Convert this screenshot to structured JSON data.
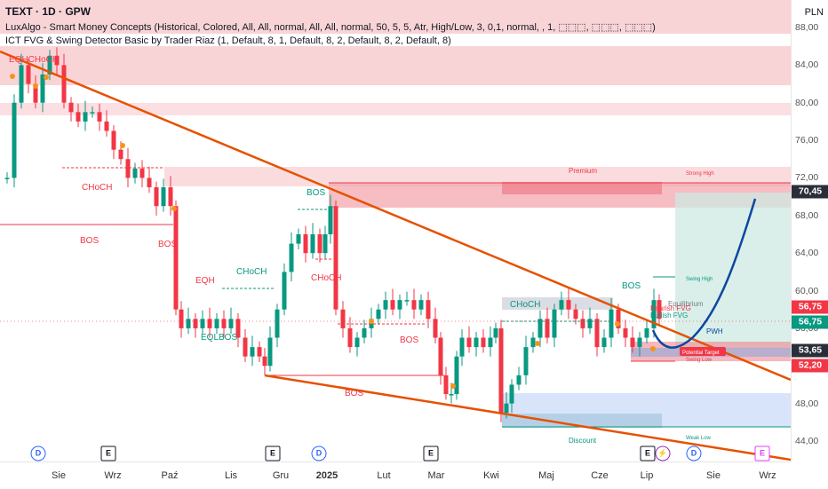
{
  "header": {
    "title": "TEXT · 1D · GPW",
    "indicator1": "LuxAlgo - Smart Money Concepts (Historical, Colored, All, All, normal, All, All, normal, 50, 5, 5, Atr, High/Low, 3, 0,1, normal, , 1, ⬚⬚⬚, ⬚⬚⬚, ⬚⬚⬚)",
    "indicator2": "ICT FVG & Swing Detector Basic by Trader Riaz (1, Default, 8, 1, Default, 8, 2, Default, 8, 2, Default, 8)"
  },
  "price_axis": {
    "currency": "PLN",
    "ticks": [
      "88,00",
      "84,00",
      "80,00",
      "76,00",
      "72,00",
      "68,00",
      "64,00",
      "60,00",
      "56,00",
      "52,00",
      "48,00",
      "44,00"
    ],
    "labels": [
      {
        "text": "70,45",
        "color": "#2a2e39"
      },
      {
        "text": "56,75",
        "color": "#f23645"
      },
      {
        "text": "56,75",
        "color": "#089981"
      },
      {
        "text": "53,65",
        "color": "#2a2e39"
      },
      {
        "text": "52,20",
        "color": "#f23645"
      }
    ]
  },
  "time_axis": {
    "ticks": [
      "Sie",
      "Wrz",
      "Paź",
      "Lis",
      "Gru",
      "2025",
      "Lut",
      "Mar",
      "Kwi",
      "Maj",
      "Cze",
      "Lip",
      "Sie",
      "Wrz"
    ]
  },
  "events": [
    "D",
    "E",
    "E",
    "D",
    "E",
    "E",
    "⚡",
    "D",
    "E"
  ],
  "annotations": {
    "eqh_choch": "EQHCHoCH",
    "choch_left": "CHoCH",
    "bos_left": "BOS",
    "bos_left2": "BOS",
    "eqh": "EQH",
    "choch_mid": "CHoCH",
    "eql_bos": "EQLBOS",
    "bos_top": "BOS",
    "choch_red": "CHoCH",
    "bos_mid": "BOS",
    "bos_low": "BOS",
    "choch_green": "CHoCH",
    "bos_right": "BOS",
    "premium": "Premium",
    "strong_high": "Strong High",
    "discount": "Discount",
    "weak_low": "Weak Low",
    "equilibrium": "Equilibrium",
    "swing_high": "Swing High",
    "swing_low": "Swing Low",
    "bearish_fvg": "Bearish FVG",
    "bullish_fvg": "Bullish FVG",
    "pwh": "PWH",
    "potential_target": "Potential Target"
  },
  "colors": {
    "bull": "#089981",
    "bear": "#f23645",
    "trendline": "#e65100",
    "projection": "#0d47a1",
    "premium_zone": "#f7c5ca",
    "discount_zone": "#c9dbf7"
  }
}
